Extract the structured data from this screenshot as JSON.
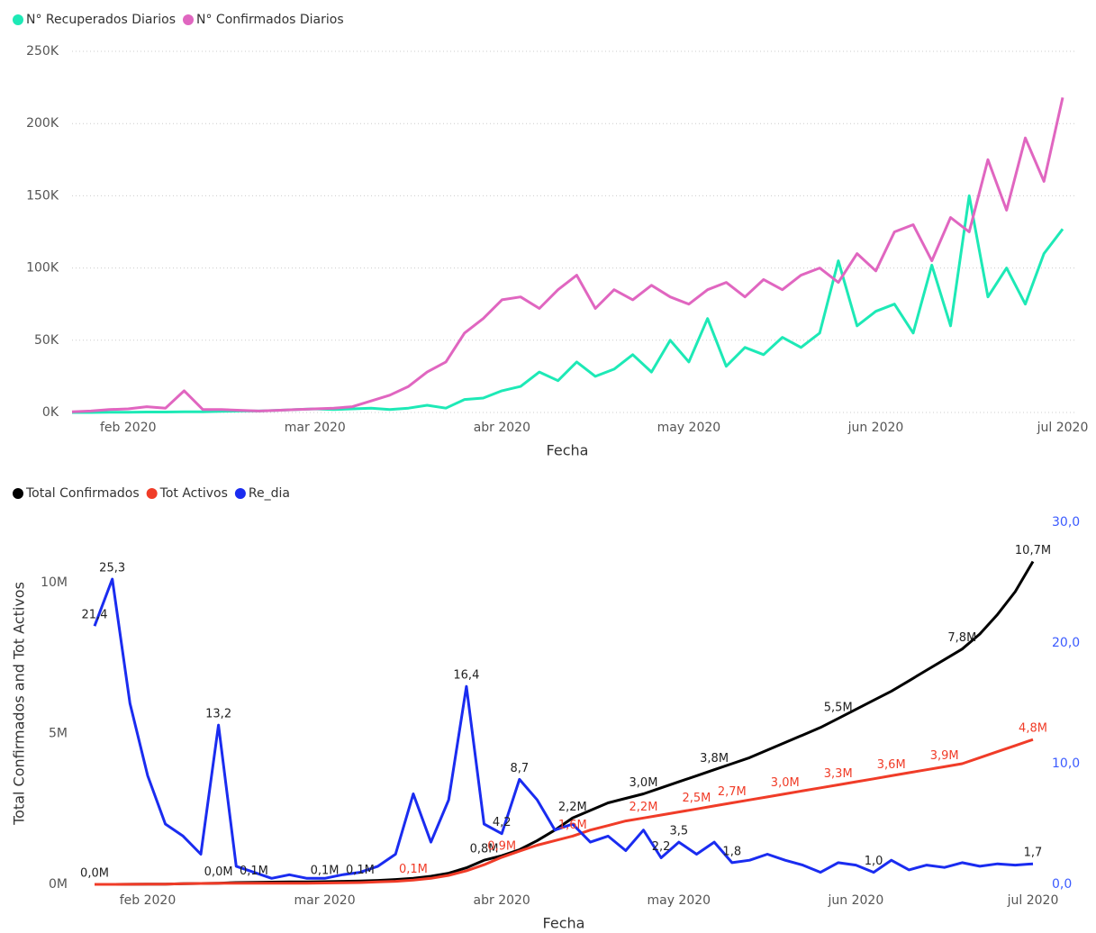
{
  "chart_data": [
    {
      "type": "line",
      "x_label": "Fecha",
      "grid": true,
      "x": [
        null,
        null,
        null,
        "feb 2020",
        null,
        null,
        null,
        null,
        null,
        null,
        null,
        null,
        null,
        "mar 2020",
        null,
        null,
        null,
        null,
        null,
        null,
        null,
        null,
        null,
        "abr 2020",
        null,
        null,
        null,
        null,
        null,
        null,
        null,
        null,
        null,
        "may 2020",
        null,
        null,
        null,
        null,
        null,
        null,
        null,
        null,
        null,
        "jun 2020",
        null,
        null,
        null,
        null,
        null,
        null,
        null,
        null,
        null,
        "jul 2020"
      ],
      "ylim": [
        0,
        250000
      ],
      "yticks": [
        {
          "value": 0,
          "label": "0K"
        },
        {
          "value": 50000,
          "label": "50K"
        },
        {
          "value": 100000,
          "label": "100K"
        },
        {
          "value": 150000,
          "label": "150K"
        },
        {
          "value": 200000,
          "label": "200K"
        },
        {
          "value": 250000,
          "label": "250K"
        }
      ],
      "series": [
        {
          "name": "N° Recuperados Diarios",
          "color": "#1de9b6",
          "values": [
            0,
            0,
            100,
            200,
            300,
            300,
            500,
            500,
            800,
            1000,
            1000,
            1500,
            2000,
            2500,
            2000,
            2500,
            3000,
            2000,
            3000,
            5000,
            3000,
            9000,
            10000,
            15000,
            18000,
            28000,
            22000,
            35000,
            25000,
            30000,
            40000,
            28000,
            50000,
            35000,
            65000,
            32000,
            45000,
            40000,
            52000,
            45000,
            55000,
            105000,
            60000,
            70000,
            75000,
            55000,
            102000,
            60000,
            150000,
            80000,
            100000,
            75000,
            110000,
            127000
          ]
        },
        {
          "name": "N° Confirmados Diarios",
          "color": "#e066c0",
          "values": [
            500,
            1000,
            2000,
            2500,
            4000,
            3000,
            15000,
            2000,
            2000,
            1500,
            1000,
            1500,
            2000,
            2500,
            3000,
            4000,
            8000,
            12000,
            18000,
            28000,
            35000,
            55000,
            65000,
            78000,
            80000,
            72000,
            85000,
            95000,
            72000,
            85000,
            78000,
            88000,
            80000,
            75000,
            85000,
            90000,
            80000,
            92000,
            85000,
            95000,
            100000,
            90000,
            110000,
            98000,
            125000,
            130000,
            105000,
            135000,
            125000,
            175000,
            140000,
            190000,
            160000,
            218000
          ]
        }
      ]
    },
    {
      "type": "line",
      "x_label": "Fecha",
      "y_label": "Total Confirmados and Tot Activos",
      "grid": false,
      "x": [
        null,
        null,
        null,
        "feb 2020",
        null,
        null,
        null,
        null,
        null,
        null,
        null,
        null,
        null,
        "mar 2020",
        null,
        null,
        null,
        null,
        null,
        null,
        null,
        null,
        null,
        "abr 2020",
        null,
        null,
        null,
        null,
        null,
        null,
        null,
        null,
        null,
        "may 2020",
        null,
        null,
        null,
        null,
        null,
        null,
        null,
        null,
        null,
        "jun 2020",
        null,
        null,
        null,
        null,
        null,
        null,
        null,
        null,
        null,
        "jul 2020"
      ],
      "ylim": [
        0,
        12000000
      ],
      "yticks": [
        {
          "value": 0,
          "label": "0M"
        },
        {
          "value": 5000000,
          "label": "5M"
        },
        {
          "value": 10000000,
          "label": "10M"
        }
      ],
      "y2lim": [
        0,
        30
      ],
      "y2ticks": [
        {
          "value": 0,
          "label": "0,0"
        },
        {
          "value": 10,
          "label": "10,0"
        },
        {
          "value": 20,
          "label": "20,0"
        },
        {
          "value": 30,
          "label": "30,0"
        }
      ],
      "y2color": "#3b5bff",
      "series": [
        {
          "name": "Total Confirmados",
          "color": "#000000",
          "values": [
            500,
            1000,
            3000,
            6000,
            10000,
            20000,
            30000,
            40000,
            60000,
            70000,
            75000,
            80000,
            85000,
            90000,
            100000,
            110000,
            130000,
            160000,
            200000,
            270000,
            370000,
            550000,
            800000,
            950000,
            1150000,
            1450000,
            1800000,
            2200000,
            2450000,
            2700000,
            2850000,
            3000000,
            3200000,
            3400000,
            3600000,
            3800000,
            4000000,
            4200000,
            4450000,
            4700000,
            4950000,
            5200000,
            5500000,
            5800000,
            6100000,
            6400000,
            6750000,
            7100000,
            7450000,
            7800000,
            8300000,
            8950000,
            9700000,
            10700000
          ],
          "value_labels": [
            "0,0M",
            null,
            null,
            null,
            null,
            null,
            null,
            "0,0M",
            null,
            "0,1M",
            null,
            null,
            null,
            "0,1M",
            null,
            "0,1M",
            null,
            null,
            null,
            null,
            null,
            null,
            "0,8M",
            null,
            null,
            null,
            null,
            "2,2M",
            null,
            null,
            null,
            "3,0M",
            null,
            null,
            null,
            "3,8M",
            null,
            null,
            null,
            null,
            null,
            null,
            "5,5M",
            null,
            null,
            null,
            null,
            null,
            null,
            "7,8M",
            null,
            null,
            null,
            "10,7M"
          ]
        },
        {
          "name": "Tot Activos",
          "color": "#f03c28",
          "values": [
            500,
            1000,
            3000,
            5000,
            10000,
            20000,
            30000,
            40000,
            40000,
            40000,
            40000,
            40000,
            40000,
            45000,
            50000,
            60000,
            80000,
            100000,
            140000,
            200000,
            300000,
            450000,
            650000,
            900000,
            1100000,
            1300000,
            1450000,
            1600000,
            1800000,
            1950000,
            2100000,
            2200000,
            2300000,
            2400000,
            2500000,
            2600000,
            2700000,
            2800000,
            2900000,
            3000000,
            3100000,
            3200000,
            3300000,
            3400000,
            3500000,
            3600000,
            3700000,
            3800000,
            3900000,
            4000000,
            4200000,
            4400000,
            4600000,
            4800000
          ],
          "value_labels": [
            null,
            null,
            null,
            null,
            null,
            null,
            null,
            null,
            null,
            null,
            null,
            null,
            null,
            null,
            null,
            null,
            null,
            null,
            "0,1M",
            null,
            null,
            null,
            null,
            "0,9M",
            null,
            null,
            null,
            "1,6M",
            null,
            null,
            null,
            "2,2M",
            null,
            null,
            "2,5M",
            null,
            "2,7M",
            null,
            null,
            "3,0M",
            null,
            null,
            "3,3M",
            null,
            null,
            "3,6M",
            null,
            null,
            "3,9M",
            null,
            null,
            null,
            null,
            "4,8M"
          ]
        },
        {
          "name": "Re_dia",
          "color": "#1a2cf0",
          "axis": "y2",
          "values": [
            21.4,
            25.3,
            15,
            9,
            5,
            4,
            2.5,
            13.2,
            1.5,
            1.0,
            0.5,
            0.8,
            0.5,
            0.5,
            0.8,
            1.0,
            1.5,
            2.5,
            7.5,
            3.5,
            7.0,
            16.4,
            5.0,
            4.2,
            8.7,
            7.0,
            4.5,
            5.0,
            3.5,
            4.0,
            2.8,
            4.5,
            2.2,
            3.5,
            2.5,
            3.5,
            1.8,
            2.0,
            2.5,
            2.0,
            1.6,
            1.0,
            1.8,
            1.6,
            1.0,
            2.0,
            1.2,
            1.6,
            1.4,
            1.8,
            1.5,
            1.7,
            1.6,
            1.7
          ],
          "value_labels": [
            "21,4",
            "25,3",
            null,
            null,
            null,
            null,
            null,
            "13,2",
            null,
            null,
            null,
            null,
            null,
            null,
            null,
            null,
            null,
            null,
            null,
            null,
            null,
            "16,4",
            null,
            "4,2",
            "8,7",
            null,
            null,
            null,
            null,
            null,
            null,
            null,
            "2,2",
            "3,5",
            null,
            null,
            "1,8",
            null,
            null,
            null,
            null,
            null,
            null,
            null,
            "1,0",
            null,
            null,
            null,
            null,
            null,
            null,
            null,
            null,
            "1,7"
          ]
        }
      ]
    }
  ]
}
